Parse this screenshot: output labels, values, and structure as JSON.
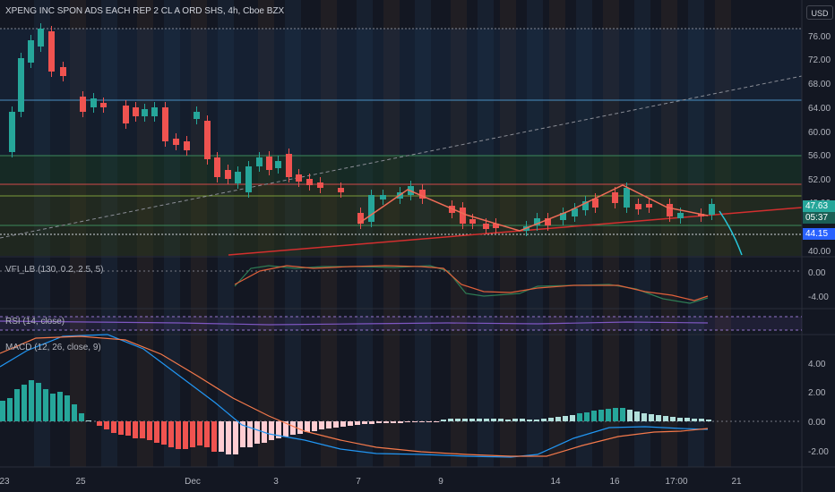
{
  "header": {
    "title": "XPENG INC SPON ADS EACH REP 2 CL A ORD SHS, 4h, Cboe BZX",
    "currency": "USD"
  },
  "price_axis": {
    "ticks": [
      "76.00",
      "72.00",
      "68.00",
      "64.00",
      "60.00",
      "56.00",
      "52.00",
      "48.00",
      "40.00"
    ],
    "last_price": "47.63",
    "countdown": "05:37",
    "level_badge": "44.15"
  },
  "indicators": {
    "vfi": {
      "label": "VFI_LB (130, 0.2, 2.5, 5)",
      "ticks": [
        "0.00",
        "-4.00"
      ]
    },
    "rsi": {
      "label": "RSI (14, close)"
    },
    "macd": {
      "label": "MACD (12, 26, close, 9)",
      "ticks": [
        "4.00",
        "2.00",
        "0.00",
        "-2.00"
      ]
    }
  },
  "time_axis": {
    "ticks": [
      "23",
      "25",
      "Dec",
      "3",
      "7",
      "9",
      "14",
      "16",
      "17:00",
      "21"
    ]
  },
  "colors": {
    "background": "#131722",
    "bull": "#26a69a",
    "bear": "#ef5350",
    "last_price_badge": "#26a69a",
    "level_badge": "#2962ff"
  }
}
